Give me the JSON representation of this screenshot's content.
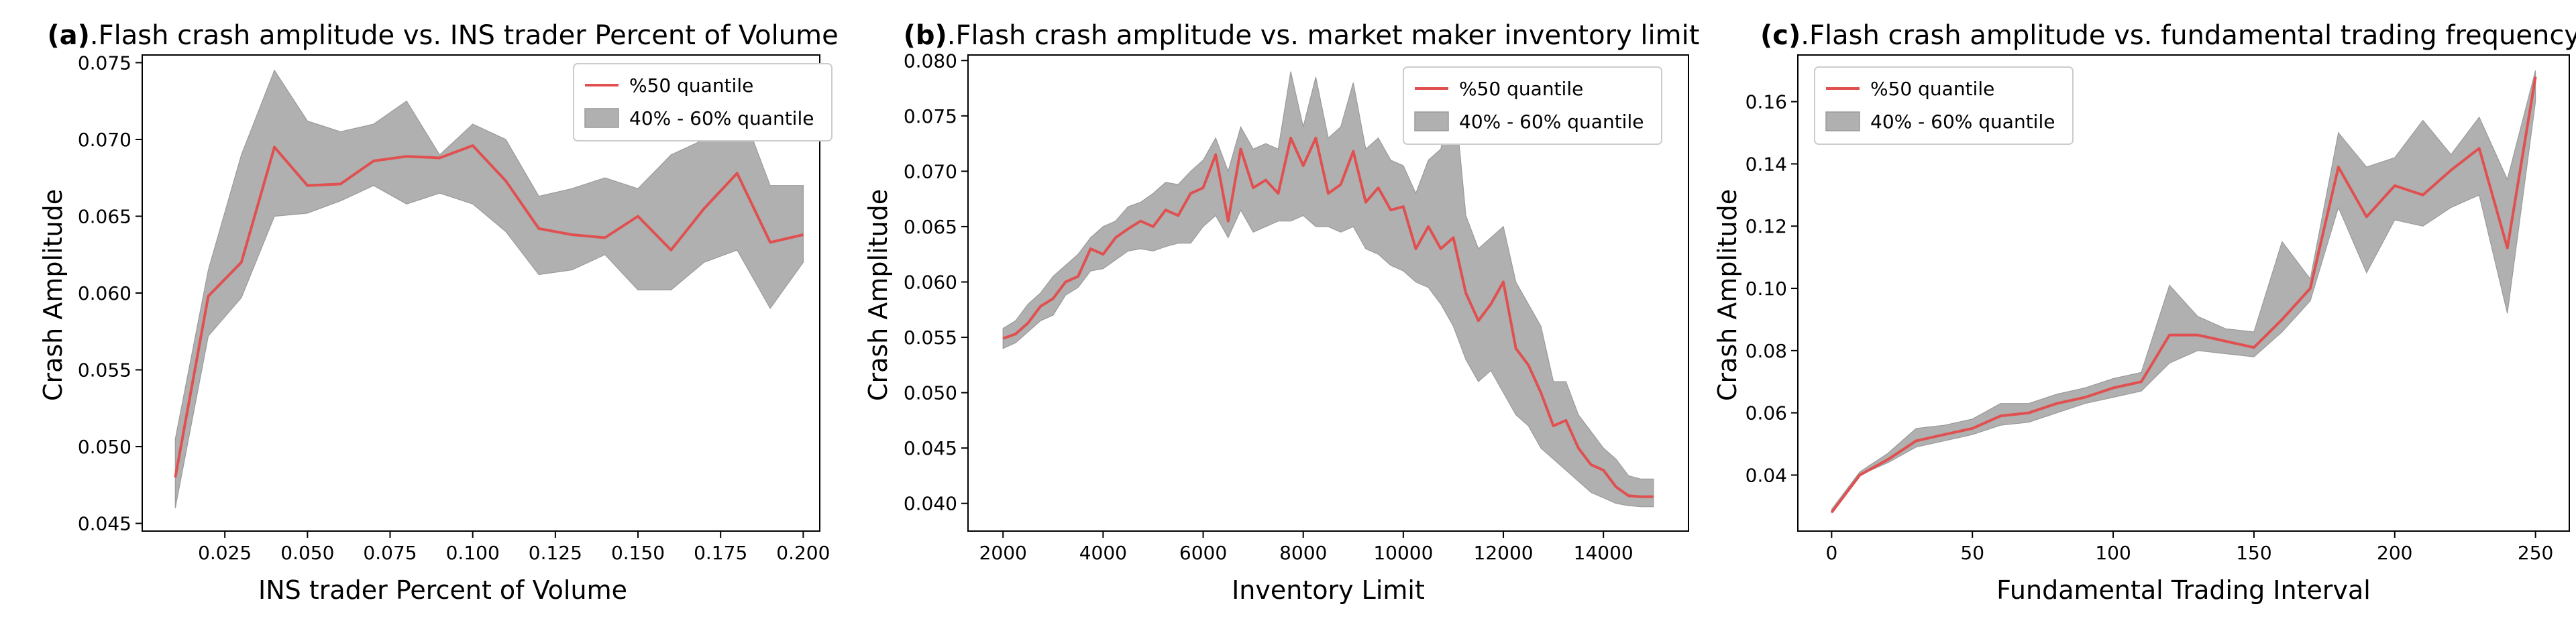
{
  "colors": {
    "median_line": "#e05050",
    "band_fill": "#b0b0b0",
    "band_edge": "#9a9a9a",
    "axis": "#000000",
    "legend_border": "#cccccc"
  },
  "chart_data": [
    {
      "type": "line",
      "tag": "(a)",
      "title": ".Flash crash amplitude vs. INS trader Percent of Volume",
      "xlabel": "INS trader Percent of Volume",
      "ylabel": "Crash Amplitude",
      "xlim": [
        0.0,
        0.205
      ],
      "ylim": [
        0.0445,
        0.0755
      ],
      "xticks": [
        0.025,
        0.05,
        0.075,
        0.1,
        0.125,
        0.15,
        0.175,
        0.2
      ],
      "xtick_labels": [
        "0.025",
        "0.050",
        "0.075",
        "0.100",
        "0.125",
        "0.150",
        "0.175",
        "0.200"
      ],
      "yticks": [
        0.045,
        0.05,
        0.055,
        0.06,
        0.065,
        0.07,
        0.075
      ],
      "ytick_labels": [
        "0.045",
        "0.050",
        "0.055",
        "0.060",
        "0.065",
        "0.070",
        "0.075"
      ],
      "legend_position": "top-right",
      "legend": [
        "%50 quantile",
        "40% - 60% quantile"
      ],
      "x": [
        0.01,
        0.02,
        0.03,
        0.04,
        0.05,
        0.06,
        0.07,
        0.08,
        0.09,
        0.1,
        0.11,
        0.12,
        0.13,
        0.14,
        0.15,
        0.16,
        0.17,
        0.18,
        0.19,
        0.2
      ],
      "series": [
        {
          "name": "%50 quantile",
          "values": [
            0.048,
            0.0598,
            0.062,
            0.0695,
            0.067,
            0.0671,
            0.0686,
            0.0689,
            0.0688,
            0.0696,
            0.0673,
            0.0642,
            0.0638,
            0.0636,
            0.065,
            0.0628,
            0.0655,
            0.0678,
            0.0633,
            0.0638
          ]
        },
        {
          "name": "40% - 60% quantile",
          "lower": [
            0.046,
            0.0572,
            0.0597,
            0.065,
            0.0652,
            0.066,
            0.067,
            0.0658,
            0.0665,
            0.0658,
            0.064,
            0.0612,
            0.0615,
            0.0625,
            0.0602,
            0.0602,
            0.062,
            0.0628,
            0.059,
            0.062
          ],
          "upper": [
            0.0505,
            0.0615,
            0.069,
            0.0745,
            0.0712,
            0.0705,
            0.071,
            0.0725,
            0.069,
            0.071,
            0.07,
            0.0663,
            0.0668,
            0.0675,
            0.0668,
            0.069,
            0.07,
            0.0727,
            0.067,
            0.067
          ]
        }
      ]
    },
    {
      "type": "line",
      "tag": "(b)",
      "title": ".Flash crash amplitude vs. market maker inventory limit",
      "xlabel": "Inventory Limit",
      "ylabel": "Crash Amplitude",
      "xlim": [
        1300,
        15700
      ],
      "ylim": [
        0.0375,
        0.0805
      ],
      "xticks": [
        2000,
        4000,
        6000,
        8000,
        10000,
        12000,
        14000
      ],
      "xtick_labels": [
        "2000",
        "4000",
        "6000",
        "8000",
        "10000",
        "12000",
        "14000"
      ],
      "yticks": [
        0.04,
        0.045,
        0.05,
        0.055,
        0.06,
        0.065,
        0.07,
        0.075,
        0.08
      ],
      "ytick_labels": [
        "0.040",
        "0.045",
        "0.050",
        "0.055",
        "0.060",
        "0.065",
        "0.070",
        "0.075",
        "0.080"
      ],
      "legend_position": "top-right",
      "legend": [
        "%50 quantile",
        "40% - 60% quantile"
      ],
      "x": [
        2000,
        2250,
        2500,
        2750,
        3000,
        3250,
        3500,
        3750,
        4000,
        4250,
        4500,
        4750,
        5000,
        5250,
        5500,
        5750,
        6000,
        6250,
        6500,
        6750,
        7000,
        7250,
        7500,
        7750,
        8000,
        8250,
        8500,
        8750,
        9000,
        9250,
        9500,
        9750,
        10000,
        10250,
        10500,
        10750,
        11000,
        11250,
        11500,
        11750,
        12000,
        12250,
        12500,
        12750,
        13000,
        13250,
        13500,
        13750,
        14000,
        14250,
        14500,
        14750,
        15000
      ],
      "series": [
        {
          "name": "%50 quantile",
          "values": [
            0.0549,
            0.0553,
            0.0563,
            0.0578,
            0.0585,
            0.06,
            0.0605,
            0.063,
            0.0625,
            0.064,
            0.0648,
            0.0655,
            0.065,
            0.0665,
            0.066,
            0.068,
            0.0685,
            0.0715,
            0.0655,
            0.072,
            0.0685,
            0.0692,
            0.068,
            0.073,
            0.0705,
            0.073,
            0.068,
            0.0688,
            0.0718,
            0.0672,
            0.0685,
            0.0665,
            0.0668,
            0.063,
            0.065,
            0.063,
            0.064,
            0.059,
            0.0565,
            0.058,
            0.06,
            0.054,
            0.0525,
            0.05,
            0.047,
            0.0475,
            0.045,
            0.0435,
            0.043,
            0.0415,
            0.0407,
            0.0406,
            0.0406
          ]
        },
        {
          "name": "40% - 60% quantile",
          "lower": [
            0.054,
            0.0545,
            0.0555,
            0.0565,
            0.057,
            0.0588,
            0.0595,
            0.061,
            0.0612,
            0.062,
            0.0628,
            0.063,
            0.0628,
            0.0632,
            0.0635,
            0.0635,
            0.065,
            0.066,
            0.064,
            0.0665,
            0.0645,
            0.065,
            0.0655,
            0.0655,
            0.066,
            0.065,
            0.065,
            0.0645,
            0.065,
            0.063,
            0.0625,
            0.0615,
            0.061,
            0.06,
            0.0595,
            0.058,
            0.056,
            0.053,
            0.051,
            0.052,
            0.05,
            0.048,
            0.047,
            0.045,
            0.044,
            0.043,
            0.042,
            0.041,
            0.0405,
            0.04,
            0.0398,
            0.0397,
            0.0397
          ],
          "upper": [
            0.0558,
            0.0565,
            0.058,
            0.059,
            0.0605,
            0.0615,
            0.0625,
            0.064,
            0.065,
            0.0655,
            0.0668,
            0.0672,
            0.068,
            0.069,
            0.0688,
            0.07,
            0.071,
            0.073,
            0.07,
            0.074,
            0.072,
            0.0725,
            0.072,
            0.079,
            0.074,
            0.0785,
            0.073,
            0.074,
            0.078,
            0.072,
            0.073,
            0.071,
            0.0705,
            0.068,
            0.071,
            0.072,
            0.078,
            0.066,
            0.063,
            0.064,
            0.065,
            0.06,
            0.058,
            0.056,
            0.051,
            0.051,
            0.048,
            0.0465,
            0.045,
            0.044,
            0.0425,
            0.0422,
            0.0422
          ]
        }
      ]
    },
    {
      "type": "line",
      "tag": "(c)",
      "title": ".Flash crash amplitude vs. fundamental trading frequency",
      "xlabel": "Fundamental Trading Interval",
      "ylabel": "Crash Amplitude",
      "xlim": [
        -12,
        262
      ],
      "ylim": [
        0.022,
        0.175
      ],
      "xticks": [
        0,
        50,
        100,
        150,
        200,
        250
      ],
      "xtick_labels": [
        "0",
        "50",
        "100",
        "150",
        "200",
        "250"
      ],
      "yticks": [
        0.04,
        0.06,
        0.08,
        0.1,
        0.12,
        0.14,
        0.16
      ],
      "ytick_labels": [
        "0.04",
        "0.06",
        "0.08",
        "0.10",
        "0.12",
        "0.14",
        "0.16"
      ],
      "legend_position": "top-left",
      "legend": [
        "%50 quantile",
        "40% - 60% quantile"
      ],
      "x": [
        0,
        10,
        20,
        30,
        40,
        50,
        60,
        70,
        80,
        90,
        100,
        110,
        120,
        130,
        140,
        150,
        160,
        170,
        180,
        190,
        200,
        210,
        220,
        230,
        240,
        250
      ],
      "series": [
        {
          "name": "%50 quantile",
          "values": [
            0.028,
            0.04,
            0.045,
            0.051,
            0.053,
            0.055,
            0.059,
            0.06,
            0.063,
            0.065,
            0.068,
            0.07,
            0.085,
            0.085,
            0.083,
            0.081,
            0.09,
            0.1,
            0.139,
            0.123,
            0.133,
            0.13,
            0.138,
            0.145,
            0.113,
            0.168
          ]
        },
        {
          "name": "40% - 60% quantile",
          "lower": [
            0.028,
            0.04,
            0.044,
            0.049,
            0.051,
            0.053,
            0.056,
            0.057,
            0.06,
            0.063,
            0.065,
            0.067,
            0.076,
            0.08,
            0.079,
            0.078,
            0.086,
            0.096,
            0.126,
            0.105,
            0.122,
            0.12,
            0.126,
            0.13,
            0.092,
            0.16
          ]
        },
        {
          "name": "40% - 60% quantile (upper)",
          "upper": [
            0.029,
            0.041,
            0.047,
            0.055,
            0.056,
            0.058,
            0.063,
            0.063,
            0.066,
            0.068,
            0.071,
            0.073,
            0.101,
            0.091,
            0.087,
            0.086,
            0.115,
            0.103,
            0.15,
            0.139,
            0.142,
            0.154,
            0.143,
            0.155,
            0.135,
            0.17
          ]
        }
      ]
    }
  ]
}
